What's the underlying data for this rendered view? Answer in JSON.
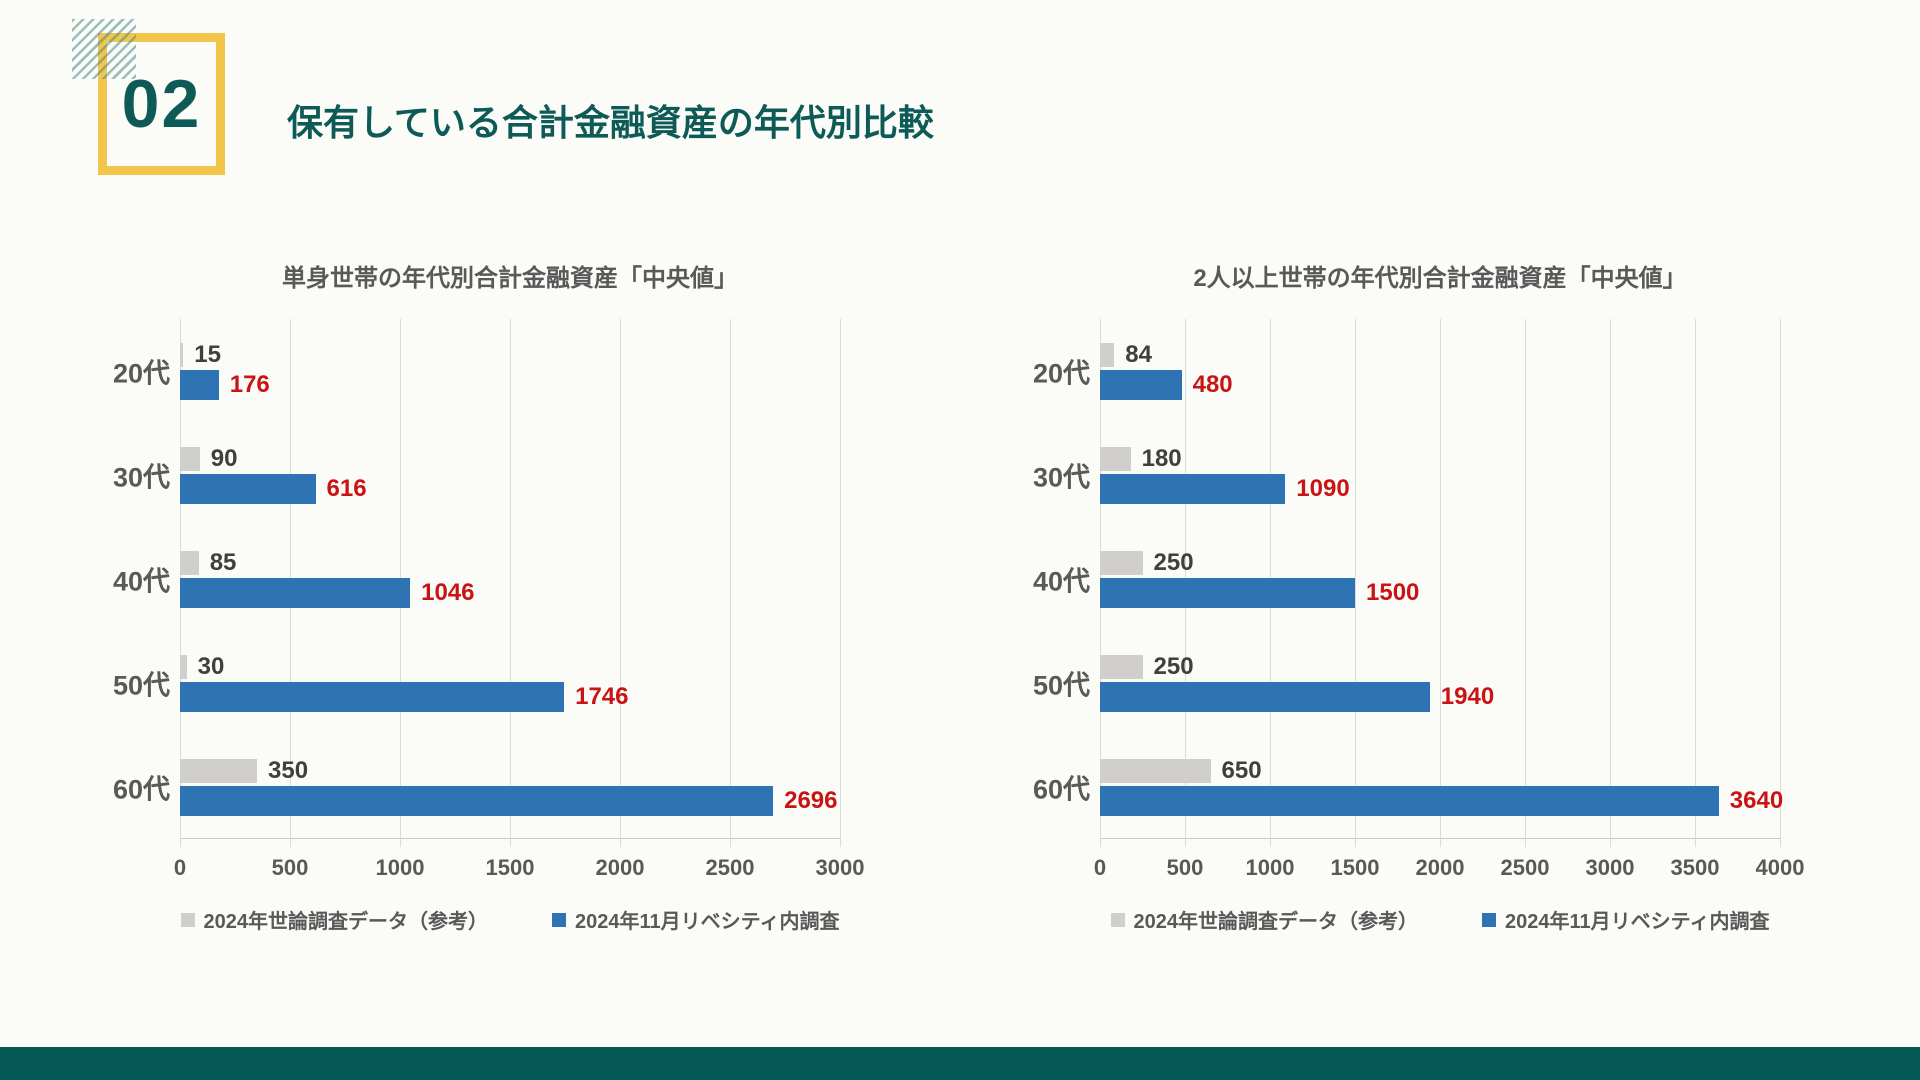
{
  "page": {
    "background_color": "#FBFBF7",
    "footer_color": "#055A58"
  },
  "header": {
    "badge_number": "02",
    "title": "保有している合計金融資産の年代別比較",
    "badge_border_color": "#F1C64B",
    "text_color": "#0E5A56"
  },
  "chart_data": [
    {
      "type": "bar",
      "orientation": "horizontal",
      "title": "単身世帯の年代別合計金融資産「中央値」",
      "categories": [
        "20代",
        "30代",
        "40代",
        "50代",
        "60代"
      ],
      "series": [
        {
          "name": "2024年世論調査データ（参考）",
          "color": "#D1CFCD",
          "label_color": "#3F3F3F",
          "values": [
            15,
            90,
            85,
            30,
            350
          ]
        },
        {
          "name": "2024年11月リベシティ内調査",
          "color": "#2E74B5",
          "label_color": "#C81414",
          "values": [
            176,
            616,
            1046,
            1746,
            2696
          ]
        }
      ],
      "xlim": [
        0,
        3000
      ],
      "xticks": [
        0,
        500,
        1000,
        1500,
        2000,
        2500,
        3000
      ],
      "grid": true,
      "legend_position": "bottom"
    },
    {
      "type": "bar",
      "orientation": "horizontal",
      "title": "2人以上世帯の年代別合計金融資産「中央値」",
      "categories": [
        "20代",
        "30代",
        "40代",
        "50代",
        "60代"
      ],
      "series": [
        {
          "name": "2024年世論調査データ（参考）",
          "color": "#D1CFCD",
          "label_color": "#3F3F3F",
          "values": [
            84,
            180,
            250,
            250,
            650
          ]
        },
        {
          "name": "2024年11月リベシティ内調査",
          "color": "#2E74B5",
          "label_color": "#C81414",
          "values": [
            480,
            1090,
            1500,
            1940,
            3640
          ]
        }
      ],
      "xlim": [
        0,
        4000
      ],
      "xticks": [
        0,
        500,
        1000,
        1500,
        2000,
        2500,
        3000,
        3500,
        4000
      ],
      "grid": true,
      "legend_position": "bottom"
    }
  ]
}
